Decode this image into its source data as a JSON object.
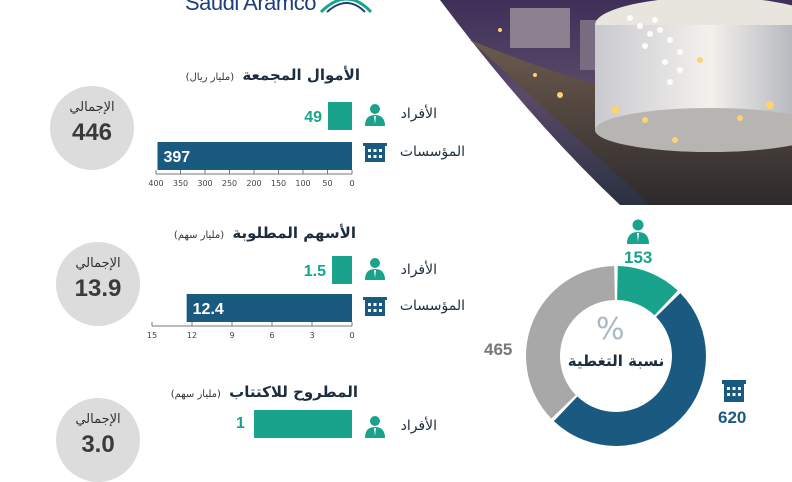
{
  "logo_text": "Saudi Aramco",
  "colors": {
    "individuals": "#1aa38c",
    "institutions": "#1b5a80",
    "other": "#a8a8a8",
    "text": "#1b2d3e"
  },
  "sections": [
    {
      "title": "الأموال المجمعة",
      "unit": "(مليار ريال)",
      "total_label": "الإجمالي",
      "total_value": "446",
      "individuals_label": "الأفراد",
      "individuals_value": "49",
      "institutions_label": "المؤسسات",
      "institutions_value": "397",
      "axis_ticks": [
        "400",
        "350",
        "300",
        "250",
        "200",
        "150",
        "100",
        "50",
        "0"
      ],
      "axis_max": 400
    },
    {
      "title": "الأسهم المطلوبة",
      "unit": "(مليار سهم)",
      "total_label": "الإجمالي",
      "total_value": "13.9",
      "individuals_label": "الأفراد",
      "individuals_value": "1.5",
      "institutions_label": "المؤسسات",
      "institutions_value": "12.4",
      "axis_ticks": [
        "15",
        "12",
        "9",
        "6",
        "3",
        "0"
      ],
      "axis_max": 15
    },
    {
      "title": "المطروح للاكتتاب",
      "unit": "(مليار سهم)",
      "total_label": "الإجمالي",
      "total_value": "3.0",
      "individuals_label": "الأفراد",
      "individuals_value": "1"
    }
  ],
  "coverage": {
    "title": "نسبة التغطية",
    "individuals": "153",
    "institutions": "620",
    "total": "465",
    "symbol": "%"
  },
  "chart_data": [
    {
      "type": "bar",
      "title": "الأموال المجمعة",
      "unit": "(مليار ريال)",
      "categories": [
        "الأفراد",
        "المؤسسات"
      ],
      "values": [
        49,
        397
      ],
      "xlim": [
        0,
        400
      ],
      "total": 446
    },
    {
      "type": "bar",
      "title": "الأسهم المطلوبة",
      "unit": "(مليار سهم)",
      "categories": [
        "الأفراد",
        "المؤسسات"
      ],
      "values": [
        1.5,
        12.4
      ],
      "xlim": [
        0,
        15
      ],
      "total": 13.9
    },
    {
      "type": "bar",
      "title": "المطروح للاكتتاب",
      "unit": "(مليار سهم)",
      "categories": [
        "الأفراد"
      ],
      "values": [
        1
      ],
      "total": 3.0
    },
    {
      "type": "pie",
      "title": "نسبة التغطية",
      "categories": [
        "الأفراد",
        "المؤسسات",
        "الإجمالي"
      ],
      "values": [
        153,
        620,
        465
      ]
    }
  ]
}
